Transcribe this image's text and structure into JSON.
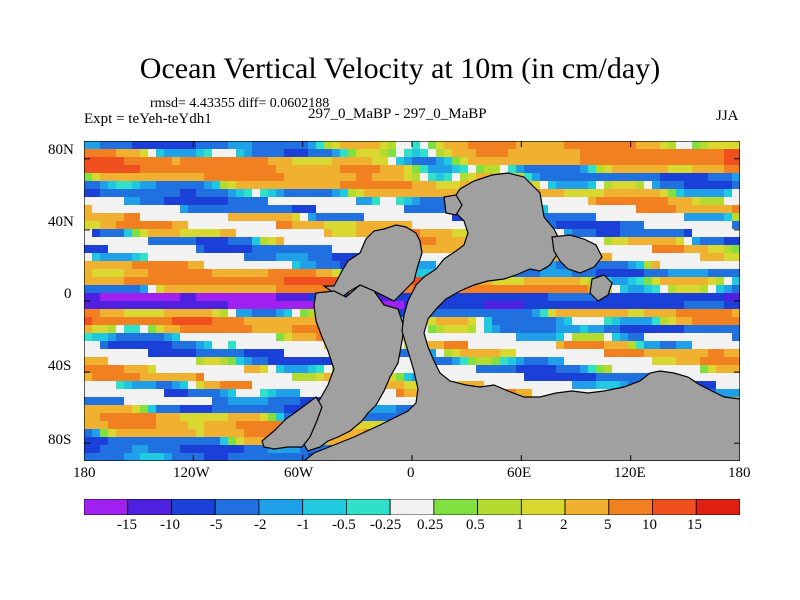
{
  "chart_data": {
    "type": "heatmap",
    "title": "Ocean Vertical Velocity at 10m (in cm/day)",
    "stats_line": "rmsd= 4.43355 diff= 0.0602188",
    "left_label": "Expt = teYeh-teYdh1",
    "center_label": "297_0_MaBP - 297_0_MaBP",
    "right_label": "JJA",
    "x_axis": {
      "range": [
        -180,
        180
      ],
      "ticks": [
        {
          "value": -180,
          "label": "180"
        },
        {
          "value": -120,
          "label": "120W"
        },
        {
          "value": -60,
          "label": "60W"
        },
        {
          "value": 0,
          "label": "0"
        },
        {
          "value": 60,
          "label": "60E"
        },
        {
          "value": 120,
          "label": "120E"
        },
        {
          "value": 180,
          "label": "180"
        }
      ]
    },
    "y_axis": {
      "range": [
        -90,
        90
      ],
      "ticks": [
        {
          "value": 80,
          "label": "80N"
        },
        {
          "value": 40,
          "label": "40N"
        },
        {
          "value": 0,
          "label": "0"
        },
        {
          "value": -40,
          "label": "40S"
        },
        {
          "value": -80,
          "label": "80S"
        }
      ]
    },
    "land_color": "#a0a0a0",
    "colorbar": {
      "levels": [
        "-15",
        "-10",
        "-5",
        "-2",
        "-1",
        "-0.5",
        "-0.25",
        "0.25",
        "0.5",
        "1",
        "2",
        "5",
        "10",
        "15"
      ],
      "colors": [
        "#a020f0",
        "#5020e0",
        "#1a40d8",
        "#2070e0",
        "#20a0e8",
        "#20c8e0",
        "#30e0c8",
        "#f2f2f2",
        "#80e040",
        "#b4dc30",
        "#d8d830",
        "#f0b030",
        "#f08020",
        "#f05020",
        "#e02010"
      ]
    }
  }
}
